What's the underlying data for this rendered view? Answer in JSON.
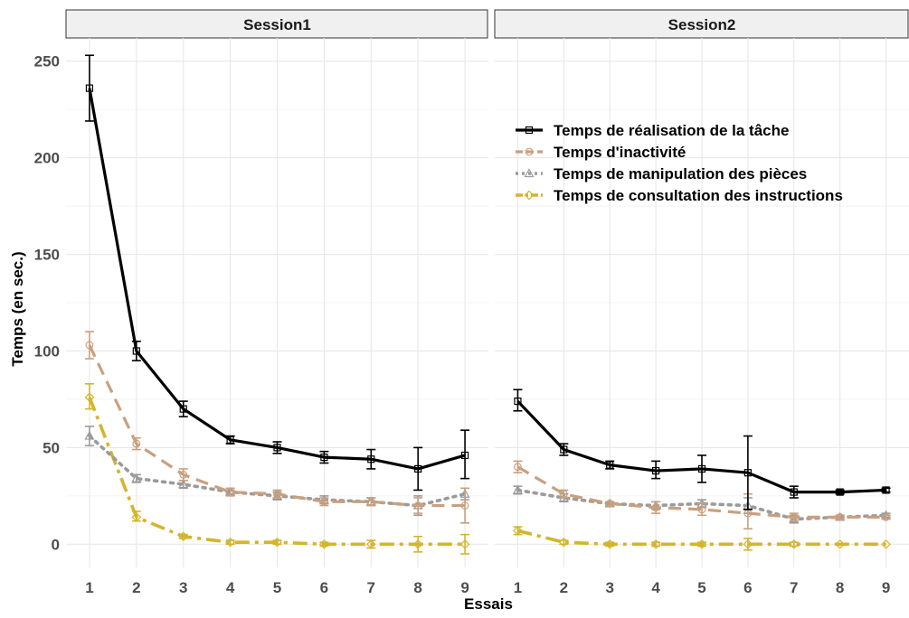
{
  "chart_data": {
    "type": "line",
    "xlabel": "Essais",
    "ylabel": "Temps (en sec.)",
    "ylim": [
      -12,
      262
    ],
    "xlim": [
      0.5,
      9.5
    ],
    "yticks": [
      0,
      50,
      100,
      150,
      200,
      250
    ],
    "xticks": [
      1,
      2,
      3,
      4,
      5,
      6,
      7,
      8,
      9
    ],
    "grid": true,
    "legend_position": "inside-top-right",
    "colors": {
      "realisation": "#000000",
      "inactivite": "#c9a07f",
      "manipulation": "#9b9b9b",
      "consultation": "#d4b52b"
    },
    "legend": [
      {
        "key": "realisation",
        "label": "Temps de réalisation de la tâche"
      },
      {
        "key": "inactivite",
        "label": "Temps d'inactivité"
      },
      {
        "key": "manipulation",
        "label": "Temps de manipulation des pièces"
      },
      {
        "key": "consultation",
        "label": "Temps de consultation des instructions"
      }
    ],
    "panels": [
      {
        "title": "Session1",
        "series": [
          {
            "key": "realisation",
            "values": [
              236,
              100,
              70,
              54,
              50,
              45,
              44,
              39,
              46
            ],
            "err_low": [
              219,
              95,
              66,
              52,
              47,
              42,
              39,
              28,
              34
            ],
            "err_high": [
              253,
              105,
              74,
              56,
              53,
              48,
              49,
              50,
              59
            ]
          },
          {
            "key": "inactivite",
            "values": [
              103,
              52,
              36,
              27,
              26,
              22,
              22,
              20,
              20
            ],
            "err_low": [
              96,
              49,
              33,
              25,
              24,
              20,
              20,
              16,
              11
            ],
            "err_high": [
              110,
              55,
              39,
              29,
              28,
              24,
              24,
              24,
              29
            ]
          },
          {
            "key": "manipulation",
            "values": [
              56,
              34,
              31,
              27,
              25,
              23,
              22,
              20,
              26
            ],
            "err_low": [
              51,
              32,
              29,
              26,
              23,
              21,
              20,
              15,
              23
            ],
            "err_high": [
              61,
              36,
              33,
              28,
              27,
              25,
              24,
              25,
              29
            ]
          },
          {
            "key": "consultation",
            "values": [
              76,
              14,
              4,
              1,
              1,
              0,
              0,
              0,
              0
            ],
            "err_low": [
              70,
              12,
              3,
              0,
              0,
              -1,
              -2,
              -4,
              -5
            ],
            "err_high": [
              83,
              17,
              5,
              2,
              2,
              1,
              2,
              4,
              5
            ]
          }
        ]
      },
      {
        "title": "Session2",
        "series": [
          {
            "key": "realisation",
            "values": [
              74,
              49,
              41,
              38,
              39,
              37,
              27,
              27,
              28
            ],
            "err_low": [
              69,
              46,
              39,
              34,
              32,
              18,
              24,
              26,
              27
            ],
            "err_high": [
              80,
              52,
              43,
              43,
              46,
              56,
              30,
              28,
              29
            ]
          },
          {
            "key": "inactivite",
            "values": [
              40,
              26,
              21,
              19,
              18,
              16,
              14,
              14,
              14
            ],
            "err_low": [
              37,
              24,
              20,
              16,
              15,
              8,
              12,
              13,
              13
            ],
            "err_high": [
              43,
              28,
              22,
              22,
              21,
              26,
              16,
              15,
              15
            ]
          },
          {
            "key": "manipulation",
            "values": [
              28,
              24,
              21,
              20,
              21,
              20,
              13,
              14,
              15
            ],
            "err_low": [
              26,
              22,
              20,
              18,
              19,
              16,
              11,
              13,
              14
            ],
            "err_high": [
              30,
              26,
              22,
              22,
              23,
              24,
              15,
              15,
              16
            ]
          },
          {
            "key": "consultation",
            "values": [
              7,
              1,
              0,
              0,
              0,
              0,
              0,
              0,
              0
            ],
            "err_low": [
              5,
              0,
              -1,
              -1,
              -1,
              -3,
              -1,
              0,
              0
            ],
            "err_high": [
              9,
              2,
              1,
              1,
              1,
              3,
              1,
              0,
              0
            ]
          }
        ]
      }
    ]
  }
}
